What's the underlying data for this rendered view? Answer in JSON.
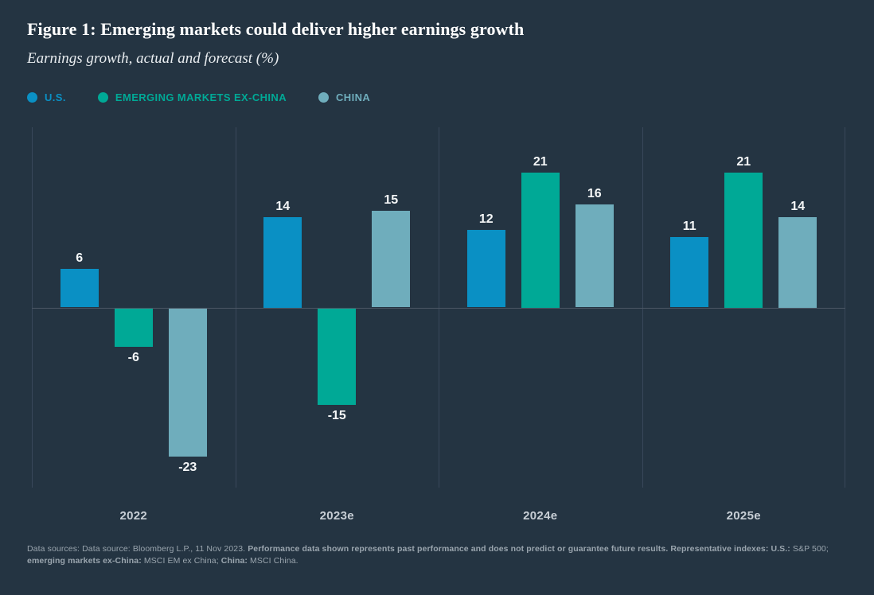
{
  "header": {
    "title": "Figure 1: Emerging markets could deliver higher earnings growth",
    "subtitle": "Earnings growth, actual and forecast (%)"
  },
  "legend": {
    "items": [
      {
        "label": "U.S.",
        "color": "#0a90c4"
      },
      {
        "label": "EMERGING MARKETS EX-CHINA",
        "color": "#00a996"
      },
      {
        "label": "CHINA",
        "color": "#6fadbc"
      }
    ]
  },
  "chart_data": {
    "type": "bar",
    "title": "Figure 1: Emerging markets could deliver higher earnings growth",
    "subtitle": "Earnings growth, actual and forecast (%)",
    "categories": [
      "2022",
      "2023e",
      "2024e",
      "2025e"
    ],
    "series": [
      {
        "name": "U.S.",
        "color": "#0a90c4",
        "values": [
          6,
          14,
          12,
          11
        ]
      },
      {
        "name": "EMERGING MARKETS EX-CHINA",
        "color": "#00a996",
        "values": [
          -6,
          -15,
          21,
          21
        ]
      },
      {
        "name": "CHINA",
        "color": "#6fadbc",
        "values": [
          -23,
          15,
          16,
          14
        ]
      }
    ],
    "xlabel": "",
    "ylabel": "",
    "ylim": [
      -28,
      28
    ],
    "grid": "vertical category separators and zero baseline, no y-axis ticks",
    "legend_position": "top-left",
    "value_labels": true
  },
  "footnote": {
    "segments": [
      {
        "text": "Data sources: Data source: Bloomberg L.P., 11 Nov 2023. ",
        "bold": false
      },
      {
        "text": "Performance data shown represents past performance and does not predict or guarantee future results. Representative indexes: U.S.: ",
        "bold": true
      },
      {
        "text": "S&P 500; ",
        "bold": false
      },
      {
        "text": "emerging markets ex-China: ",
        "bold": true
      },
      {
        "text": "MSCI EM ex China; ",
        "bold": false
      },
      {
        "text": "China: ",
        "bold": true
      },
      {
        "text": "MSCI China.",
        "bold": false
      }
    ]
  },
  "colors": {
    "background": "#243442",
    "grid_line": "#39475a",
    "zero_line": "#4b5765",
    "title_text": "#ffffff",
    "subtitle_text": "#e9edf0",
    "bar_label_text": "#f4f6f7",
    "category_text": "#c7ced5",
    "footnote_text": "#9aa5ae"
  }
}
